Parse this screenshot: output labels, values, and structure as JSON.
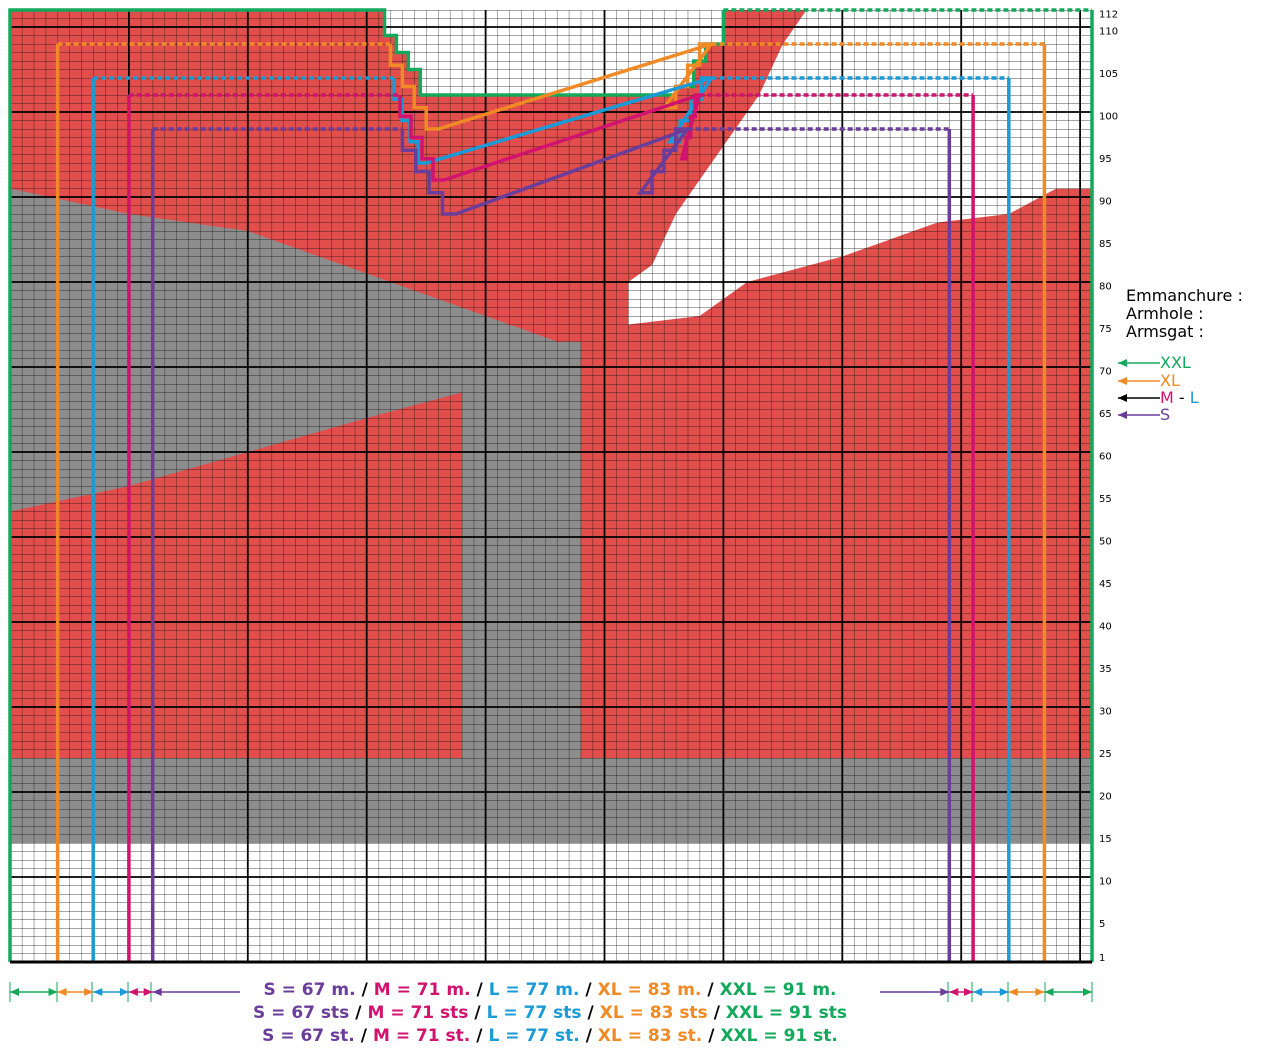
{
  "row_numbers": [
    1,
    5,
    10,
    15,
    20,
    25,
    30,
    35,
    40,
    45,
    50,
    55,
    60,
    65,
    70,
    75,
    80,
    85,
    90,
    95,
    100,
    105,
    110,
    112
  ],
  "armhole": {
    "labels": [
      "Emmanchure :",
      "Armhole :",
      "Armsgat :"
    ],
    "sizes": {
      "xxl": "XXL",
      "xl": "XL",
      "m": "M",
      "dash": "-",
      "l": "L",
      "s": "S"
    }
  },
  "stitch_counts": {
    "separator": "/",
    "lines": [
      [
        "S = 67 m.",
        "M = 71 m.",
        "L = 77 m.",
        "XL = 83 m.",
        "XXL = 91 m."
      ],
      [
        "S = 67 sts",
        "M = 71 sts",
        "L = 77 sts",
        "XL = 83 sts",
        "XXL = 91 sts"
      ],
      [
        "S = 67 st.",
        "M = 71 st.",
        "L = 77 st.",
        "XL = 83 st.",
        "XXL = 91 st."
      ]
    ]
  }
}
